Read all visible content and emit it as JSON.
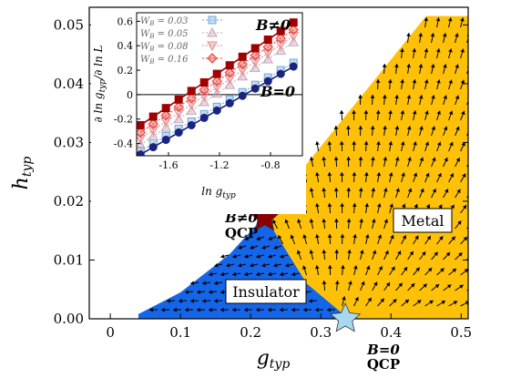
{
  "chart_data": {
    "type": "scatter",
    "main": {
      "xlabel": "g",
      "xlabel_sub": "typ",
      "ylabel": "h",
      "ylabel_sub": "typ",
      "xlim": [
        -0.03,
        0.51
      ],
      "ylim": [
        0.0,
        0.053
      ],
      "xticks": [
        "0",
        "0.1",
        "0.2",
        "0.3",
        "0.4",
        "0.5"
      ],
      "xtick_values": [
        0,
        0.1,
        0.2,
        0.3,
        0.4,
        0.5
      ],
      "yticks": [
        "0.00",
        "0.01",
        "0.02",
        "0.03",
        "0.04",
        "0.05"
      ],
      "ytick_values": [
        0,
        0.01,
        0.02,
        0.03,
        0.04,
        0.05
      ],
      "regions": [
        {
          "name": "Insulator",
          "color": "#1565e8",
          "boundary": [
            [
              0.04,
              0.0
            ],
            [
              0.34,
              0.0
            ],
            [
              0.28,
              0.006
            ],
            [
              0.22,
              0.0175
            ],
            [
              0.17,
              0.011
            ],
            [
              0.1,
              0.0045
            ],
            [
              0.04,
              0.0008
            ]
          ]
        },
        {
          "name": "Metal",
          "color": "#ffc107",
          "boundary": [
            [
              0.34,
              0.0
            ],
            [
              0.51,
              0.0
            ],
            [
              0.51,
              0.0515
            ],
            [
              0.45,
              0.0515
            ],
            [
              0.22,
              0.0175
            ],
            [
              0.28,
              0.006
            ]
          ]
        }
      ],
      "critical_points": [
        {
          "label_top": "B≠0",
          "label_bottom": "QCP",
          "x": 0.22,
          "y": 0.0172,
          "color": "#8b0000"
        },
        {
          "label_top": "B=0",
          "label_bottom": "QCP",
          "x": 0.335,
          "y": 0.0,
          "color": "#a8d8f0"
        }
      ]
    },
    "inset": {
      "xlabel": "ln g",
      "xlabel_sub": "typ",
      "ylabel": "∂ ln g",
      "ylabel_sub": "typ",
      "ylabel_tail": "/∂ ln L",
      "xlim": [
        -1.85,
        -0.55
      ],
      "ylim": [
        -0.5,
        0.67
      ],
      "xticks": [
        "-1.6",
        "-1.2",
        "-0.8"
      ],
      "xtick_values": [
        -1.6,
        -1.2,
        -0.8
      ],
      "yticks": [
        "-0.4",
        "-0.2",
        "0",
        "0.2",
        "0.4",
        "0.6"
      ],
      "ytick_values": [
        -0.4,
        -0.2,
        0,
        0.2,
        0.4,
        0.6
      ],
      "curve_labels": [
        {
          "text": "B≠0",
          "x": -0.75,
          "y": 0.55
        },
        {
          "text": "B=0",
          "x": -0.75,
          "y": 0.08
        }
      ],
      "x": [
        -1.82,
        -1.72,
        -1.62,
        -1.52,
        -1.42,
        -1.32,
        -1.22,
        -1.12,
        -1.02,
        -0.92,
        -0.82,
        -0.72,
        -0.62
      ],
      "series": [
        {
          "name": "W_B = 0.03",
          "legend_math": "W",
          "legend_sub": "B",
          "legend_val": " = 0.03",
          "marker": "square",
          "color": "#6fa8dc",
          "values": [
            -0.46,
            -0.4,
            -0.34,
            -0.28,
            -0.22,
            -0.16,
            -0.1,
            -0.04,
            0.02,
            0.08,
            0.14,
            0.2,
            0.26
          ]
        },
        {
          "name": "W_B = 0.05",
          "legend_math": "W",
          "legend_sub": "B",
          "legend_val": " = 0.05",
          "marker": "triangle-up",
          "color": "#c9a6b6",
          "values": [
            -0.41,
            -0.34,
            -0.27,
            -0.2,
            -0.13,
            -0.06,
            0.01,
            0.08,
            0.15,
            0.22,
            0.29,
            0.36,
            0.43
          ]
        },
        {
          "name": "W_B = 0.08",
          "legend_math": "W",
          "legend_sub": "B",
          "legend_val": " = 0.08",
          "marker": "triangle-down",
          "color": "#e88a8a",
          "values": [
            -0.36,
            -0.29,
            -0.22,
            -0.15,
            -0.08,
            -0.01,
            0.06,
            0.13,
            0.2,
            0.27,
            0.34,
            0.41,
            0.48
          ]
        },
        {
          "name": "W_B = 0.16",
          "legend_math": "W",
          "legend_sub": "B",
          "legend_val": " = 0.16",
          "marker": "diamond",
          "color": "#e53935",
          "values": [
            -0.31,
            -0.24,
            -0.17,
            -0.1,
            -0.03,
            0.04,
            0.11,
            0.18,
            0.25,
            0.32,
            0.39,
            0.46,
            0.53
          ]
        },
        {
          "name": "B≠0 fit",
          "marker": "filled-square",
          "color": "#a00000",
          "values": [
            -0.25,
            -0.18,
            -0.11,
            -0.04,
            0.03,
            0.1,
            0.17,
            0.24,
            0.31,
            0.38,
            0.45,
            0.52,
            0.59
          ]
        },
        {
          "name": "B=0 fit",
          "marker": "filled-circle",
          "color": "#1a237e",
          "values": [
            -0.49,
            -0.43,
            -0.37,
            -0.31,
            -0.25,
            -0.19,
            -0.13,
            -0.07,
            -0.01,
            0.05,
            0.11,
            0.17,
            0.23
          ]
        }
      ]
    }
  }
}
